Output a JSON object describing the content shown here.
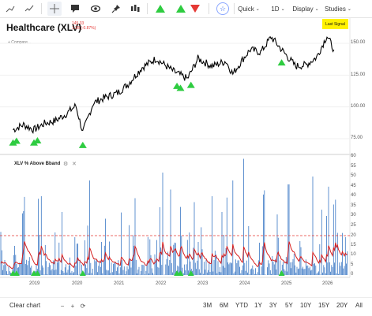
{
  "toolbar": {
    "star_glyph": "☆",
    "quick_label": "Quick",
    "interval_label": "1D",
    "display_label": "Display",
    "studies_label": "Studies",
    "chevron": "⌄"
  },
  "chart_header": {
    "title": "Healthcare (XLV)",
    "price": "145.33",
    "change": "1.28 (-0.87%)",
    "compare": "+ Compare...",
    "last_signal": "Last Signal"
  },
  "indicator": {
    "title": "XLV % Above Bband",
    "gear_glyph": "⚙",
    "close_glyph": "✕"
  },
  "price_axis": [
    "150.00",
    "125.00",
    "100.00",
    "75.00"
  ],
  "indicator_axis": [
    "60",
    "55",
    "50",
    "45",
    "40",
    "35",
    "30",
    "25",
    "20",
    "15",
    "10",
    "5",
    "0"
  ],
  "x_axis": [
    "2019",
    "2020",
    "2021",
    "2022",
    "2023",
    "2024",
    "2025",
    "2026"
  ],
  "bottom": {
    "clear_chart": "Clear chart",
    "zoom_out": "−",
    "zoom_in": "+",
    "reset": "⟳",
    "ranges": [
      "3M",
      "6M",
      "YTD",
      "1Y",
      "3Y",
      "5Y",
      "10Y",
      "15Y",
      "20Y",
      "All"
    ]
  },
  "colors": {
    "accent": "#3d6cf0",
    "buy_signal": "#2ecc40",
    "sell_signal": "#e53935",
    "price_line": "#000000",
    "indicator_bars": "#3b78c4",
    "indicator_ma": "#d61f1f",
    "threshold_line": "#e53935",
    "last_signal_bg": "#fff200"
  },
  "chart_data": [
    {
      "type": "line",
      "title": "Healthcare (XLV)",
      "x": [
        "2018-07",
        "2018-10",
        "2019-01",
        "2019-04",
        "2019-07",
        "2019-10",
        "2020-01",
        "2020-03",
        "2020-06",
        "2020-09",
        "2021-01",
        "2021-04",
        "2021-08",
        "2021-12",
        "2022-05",
        "2022-09",
        "2022-12",
        "2023-04",
        "2023-08",
        "2023-10",
        "2024-01",
        "2024-03",
        "2024-06",
        "2024-09",
        "2024-12",
        "2025-04",
        "2025-07",
        "2025-10",
        "2026-01",
        "2026-03"
      ],
      "series": [
        {
          "values": [
            82,
            86,
            82,
            87,
            89,
            94,
            101,
            80,
            103,
            107,
            111,
            118,
            131,
            138,
            128,
            122,
            138,
            132,
            136,
            126,
            138,
            145,
            143,
            155,
            145,
            132,
            133,
            139,
            156,
            145
          ]
        }
      ],
      "ylim": [
        70,
        165
      ],
      "buy_signals": [
        "2018-07",
        "2018-08",
        "2019-01",
        "2019-02",
        "2020-03",
        "2022-06",
        "2022-07",
        "2022-10",
        "2024-12"
      ]
    },
    {
      "type": "bar",
      "title": "XLV % Above Bband",
      "ylim": [
        0,
        60
      ],
      "threshold": 20,
      "sample_peaks": [
        {
          "x": "2019-03",
          "value": 40
        },
        {
          "x": "2019-09",
          "value": 32
        },
        {
          "x": "2020-05",
          "value": 48
        },
        {
          "x": "2021-02",
          "value": 36
        },
        {
          "x": "2021-06",
          "value": 39
        },
        {
          "x": "2022-02",
          "value": 52
        },
        {
          "x": "2022-11",
          "value": 37
        },
        {
          "x": "2023-04",
          "value": 40
        },
        {
          "x": "2023-10",
          "value": 48
        },
        {
          "x": "2024-01",
          "value": 59
        },
        {
          "x": "2024-07",
          "value": 43
        },
        {
          "x": "2025-02",
          "value": 46
        },
        {
          "x": "2025-09",
          "value": 50
        },
        {
          "x": "2026-01",
          "value": 30
        }
      ]
    }
  ]
}
